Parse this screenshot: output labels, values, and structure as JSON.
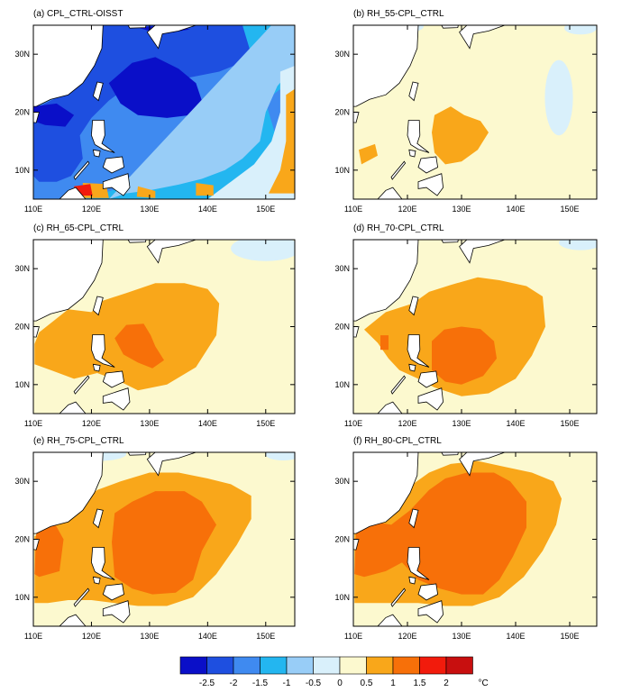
{
  "chart_data": {
    "type": "heatmap",
    "colorbar": {
      "levels": [
        "-2.5",
        "-2",
        "-1.5",
        "-1",
        "-0.5",
        "0",
        "0.5",
        "1",
        "1.5",
        "2"
      ],
      "unit": "°C",
      "colors": [
        "#0a0fc8",
        "#1e4fe0",
        "#3f8af0",
        "#23b6f0",
        "#98cdf7",
        "#d9f0fb",
        "#fcf9cf",
        "#f9a71a",
        "#f77009",
        "#f21b0c",
        "#c80f0f"
      ]
    },
    "lon_ticks": [
      "110E",
      "120E",
      "130E",
      "140E",
      "150E"
    ],
    "lat_ticks": [
      "30N",
      "20N",
      "10N"
    ],
    "lon_values": [
      110,
      120,
      130,
      140,
      150
    ],
    "lat_values": [
      30,
      20,
      10
    ],
    "extent": {
      "lon": [
        110,
        155
      ],
      "lat": [
        5,
        35
      ]
    },
    "panels": [
      {
        "label": "(a) CPL_CTRL-OISST",
        "mode": "cold"
      },
      {
        "label": "(b) RH_55-CPL_CTRL",
        "mode": "w1"
      },
      {
        "label": "(c) RH_65-CPL_CTRL",
        "mode": "w2"
      },
      {
        "label": "(d) RH_70-CPL_CTRL",
        "mode": "w3"
      },
      {
        "label": "(e) RH_75-CPL_CTRL",
        "mode": "w4"
      },
      {
        "label": "(f) RH_80-CPL_CTRL",
        "mode": "w5"
      }
    ]
  }
}
